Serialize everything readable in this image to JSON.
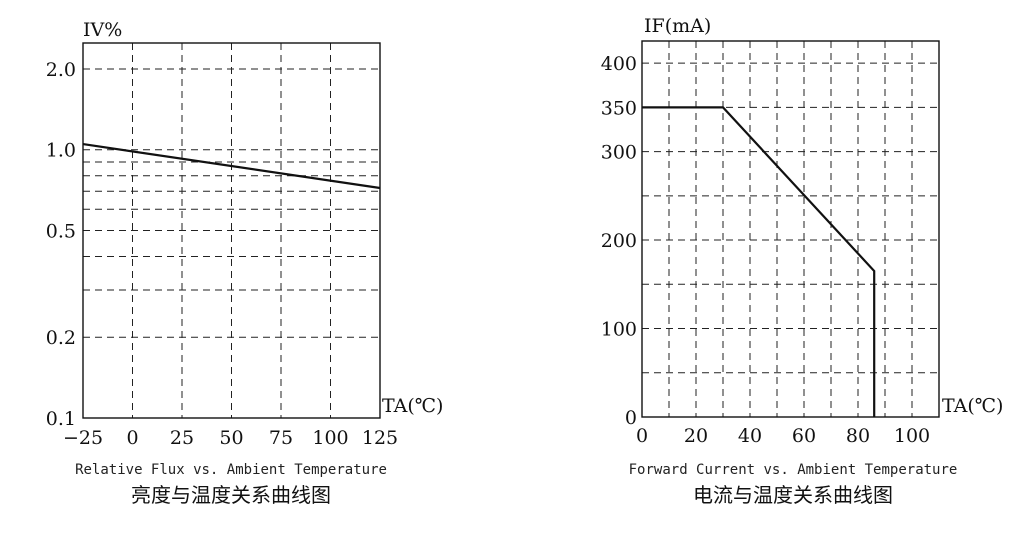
{
  "chart_data": [
    {
      "type": "line",
      "ylabel": "IV%",
      "xlabel": "TA(℃)",
      "caption_en": "Relative Flux vs. Ambient Temperature",
      "caption_cn": "亮度与温度关系曲线图",
      "y_scale": "log",
      "xlim": [
        -25,
        125
      ],
      "ylim": [
        0.1,
        2.5
      ],
      "x_ticks": [
        "−25",
        "0",
        "25",
        "50",
        "75",
        "100",
        "125"
      ],
      "x_tick_values": [
        -25,
        0,
        25,
        50,
        75,
        100,
        125
      ],
      "y_ticks": [
        "0.1",
        "0.2",
        "0.5",
        "1.0",
        "2.0"
      ],
      "y_tick_values": [
        0.1,
        0.2,
        0.5,
        1.0,
        2.0
      ],
      "grid": true,
      "series": [
        {
          "x": [
            -25,
            125
          ],
          "y": [
            1.05,
            0.72
          ]
        }
      ]
    },
    {
      "type": "line",
      "ylabel": "IF(mA)",
      "xlabel": "TA(℃)",
      "caption_en": "Forward Current vs. Ambient Temperature",
      "caption_cn": "电流与温度关系曲线图",
      "xlim": [
        0,
        110
      ],
      "ylim": [
        0,
        425
      ],
      "x_ticks": [
        "0",
        "20",
        "40",
        "60",
        "80",
        "100"
      ],
      "x_tick_values": [
        0,
        20,
        40,
        60,
        80,
        100
      ],
      "y_ticks": [
        "0",
        "100",
        "200",
        "300",
        "350",
        "400"
      ],
      "y_tick_values": [
        0,
        100,
        200,
        300,
        350,
        400
      ],
      "grid": true,
      "series": [
        {
          "x": [
            0,
            30,
            86,
            86
          ],
          "y": [
            350,
            350,
            165,
            0
          ]
        }
      ]
    }
  ]
}
